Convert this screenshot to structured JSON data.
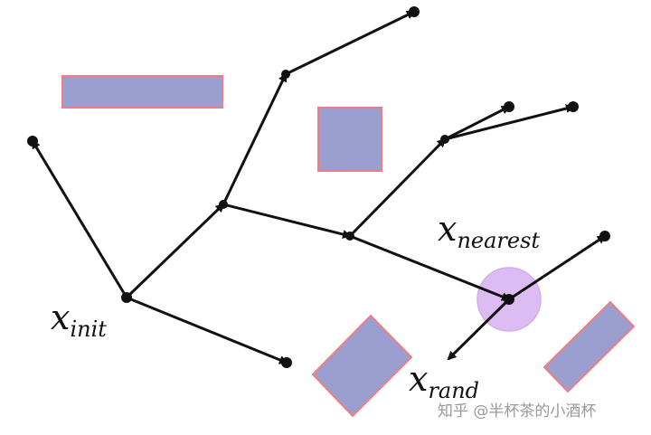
{
  "labels": {
    "x_init": {
      "base": "x",
      "sub": "init"
    },
    "x_nearest": {
      "base": "x",
      "sub": "nearest"
    },
    "x_rand": {
      "base": "x",
      "sub": "rand"
    }
  },
  "watermark": "知乎 @半杯茶的小酒杯",
  "colors": {
    "obstacle_fill": "#9b9fcf",
    "obstacle_border": "#f07d82",
    "sample_circle_fill": "#dcbcf2",
    "sample_circle_stroke": "#cfaeea",
    "edge": "#111111",
    "node": "#111111"
  },
  "legend_note": ""
}
